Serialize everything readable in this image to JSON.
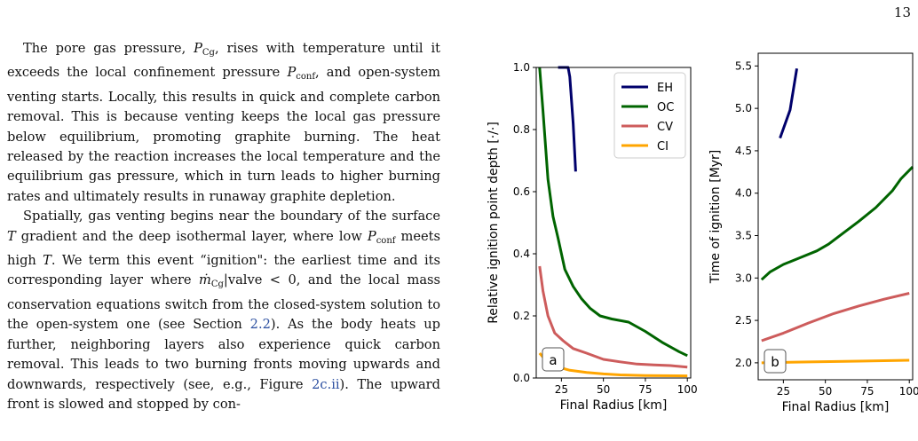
{
  "page_number": "13",
  "paragraph1": {
    "s1": "The pore gas pressure, ",
    "s2": ", rises with temperature until it exceeds the local confinement pressure ",
    "s3": ", and open-system venting starts. Locally, this results in quick and complete carbon removal. This is because venting keeps the local gas pressure below equilibrium, promoting graphite burning. The heat released by the reaction increases the local temperature and the equilibrium gas pressure, which in turn leads to higher burning rates and ultimately results in runaway graphite depletion."
  },
  "paragraph2": {
    "s1": "Spatially, gas venting begins near the boundary of the surface ",
    "s2": " gradient and the deep isothermal layer, where low ",
    "s3": " meets high ",
    "s4": ". We term this event “ignition\": the earliest time and its corresponding layer where ",
    "s5": ", and the local mass conservation equations switch from the closed-system solution to the open-system one (see Section ",
    "section_ref": "2.2",
    "s6": "). As the body heats up further, neighboring layers also experience quick carbon removal. This leads to two burning fronts moving upwards and downwards, respectively (see, e.g., Figure ",
    "figure_ref": "2c.ii",
    "s7": "). The upward front is slowed and stopped by con-"
  },
  "math": {
    "P": "P",
    "Cg": "Cg",
    "conf": "conf",
    "T": "T",
    "mdot_cond": "ṁ",
    "valve": "|valve < 0"
  },
  "chart_data": [
    {
      "type": "line",
      "panel_label": "a",
      "xlabel": "Final Radius [km]",
      "ylabel": "Relative ignition point depth  [·/·]",
      "xlim": [
        10,
        102
      ],
      "ylim": [
        0.0,
        1.0
      ],
      "xticks": [
        25,
        50,
        75,
        100
      ],
      "yticks": [
        "0.0",
        "0.2",
        "0.4",
        "0.6",
        "0.8",
        "1.0"
      ],
      "legend_position": "top-right",
      "series": [
        {
          "name": "EH",
          "color": "#00006b",
          "points": [
            [
              23,
              1.0
            ],
            [
              29,
              1.0
            ],
            [
              30,
              0.97
            ],
            [
              32,
              0.82
            ],
            [
              33.5,
              0.665
            ]
          ]
        },
        {
          "name": "OC",
          "color": "#006400",
          "points": [
            [
              12,
              1.0
            ],
            [
              14,
              0.86
            ],
            [
              17,
              0.64
            ],
            [
              20,
              0.52
            ],
            [
              23,
              0.45
            ],
            [
              27,
              0.35
            ],
            [
              32,
              0.295
            ],
            [
              37,
              0.255
            ],
            [
              42,
              0.225
            ],
            [
              48,
              0.2
            ],
            [
              55,
              0.19
            ],
            [
              65,
              0.18
            ],
            [
              75,
              0.15
            ],
            [
              85,
              0.115
            ],
            [
              95,
              0.085
            ],
            [
              100,
              0.072
            ]
          ]
        },
        {
          "name": "CV",
          "color": "#cd5c5c",
          "points": [
            [
              12,
              0.36
            ],
            [
              14,
              0.28
            ],
            [
              17,
              0.2
            ],
            [
              21,
              0.145
            ],
            [
              26,
              0.12
            ],
            [
              32,
              0.095
            ],
            [
              40,
              0.08
            ],
            [
              50,
              0.06
            ],
            [
              60,
              0.052
            ],
            [
              70,
              0.045
            ],
            [
              80,
              0.042
            ],
            [
              90,
              0.04
            ],
            [
              100,
              0.035
            ]
          ]
        },
        {
          "name": "CI",
          "color": "#ffa500",
          "points": [
            [
              12,
              0.08
            ],
            [
              16,
              0.055
            ],
            [
              20,
              0.04
            ],
            [
              30,
              0.025
            ],
            [
              40,
              0.018
            ],
            [
              50,
              0.013
            ],
            [
              60,
              0.01
            ],
            [
              75,
              0.008
            ],
            [
              100,
              0.007
            ]
          ]
        }
      ]
    },
    {
      "type": "line",
      "panel_label": "b",
      "xlabel": "Final Radius [km]",
      "ylabel": "Time of ignition [Myr]",
      "xlim": [
        10,
        102
      ],
      "ylim": [
        1.8,
        5.65
      ],
      "xticks": [
        25,
        50,
        75,
        100
      ],
      "yticks": [
        "2.0",
        "2.5",
        "3.0",
        "3.5",
        "4.0",
        "4.5",
        "5.0",
        "5.5"
      ],
      "series": [
        {
          "name": "EH",
          "color": "#00006b",
          "points": [
            [
              23,
              4.65
            ],
            [
              29,
              4.98
            ],
            [
              33,
              5.47
            ]
          ]
        },
        {
          "name": "OC",
          "color": "#006400",
          "points": [
            [
              12,
              2.98
            ],
            [
              17,
              3.07
            ],
            [
              25,
              3.16
            ],
            [
              35,
              3.24
            ],
            [
              45,
              3.32
            ],
            [
              52,
              3.4
            ],
            [
              60,
              3.52
            ],
            [
              70,
              3.67
            ],
            [
              80,
              3.83
            ],
            [
              90,
              4.03
            ],
            [
              95,
              4.17
            ],
            [
              102,
              4.31
            ]
          ]
        },
        {
          "name": "CV",
          "color": "#cd5c5c",
          "points": [
            [
              12,
              2.26
            ],
            [
              25,
              2.35
            ],
            [
              40,
              2.47
            ],
            [
              55,
              2.58
            ],
            [
              70,
              2.67
            ],
            [
              85,
              2.75
            ],
            [
              100,
              2.82
            ]
          ]
        },
        {
          "name": "CI",
          "color": "#ffa500",
          "points": [
            [
              12,
              2.0
            ],
            [
              40,
              2.01
            ],
            [
              70,
              2.02
            ],
            [
              100,
              2.03
            ]
          ]
        }
      ]
    }
  ]
}
